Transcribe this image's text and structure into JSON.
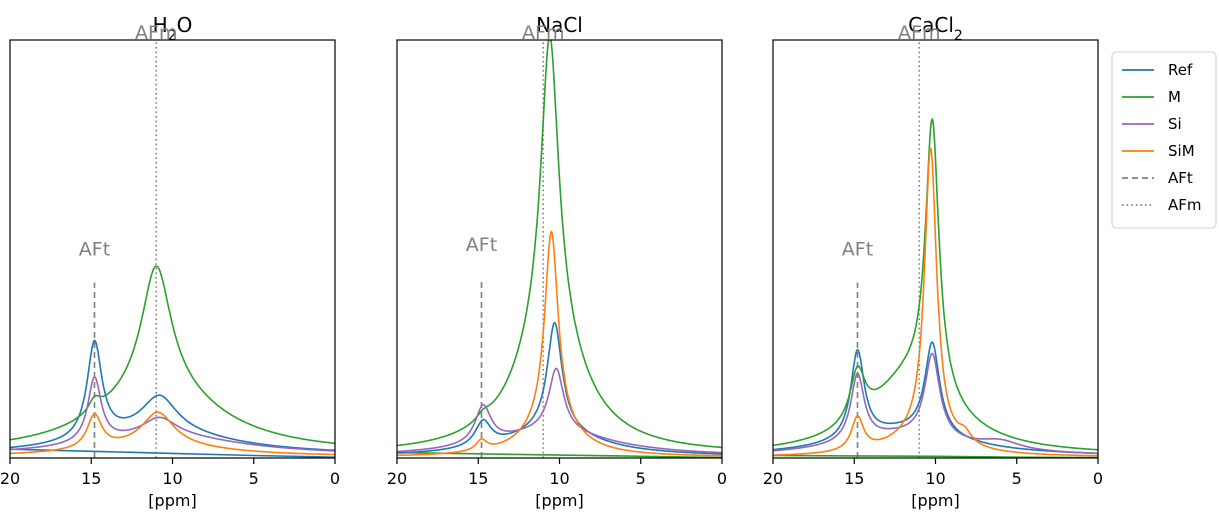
{
  "chart_data": {
    "type": "line",
    "xlabel": "[ppm]",
    "x_reversed": true,
    "xlim": [
      20,
      0
    ],
    "xticks": [
      20,
      15,
      10,
      5,
      0
    ],
    "ylim": [
      0,
      100
    ],
    "y_axis_visible": false,
    "grid": false,
    "legend": {
      "placement": "outside-top-right",
      "entries": [
        {
          "label": "Ref",
          "color": "#1f77b4",
          "style": "solid"
        },
        {
          "label": "M",
          "color": "#2ca02c",
          "style": "solid"
        },
        {
          "label": "Si",
          "color": "#9467bd",
          "style": "solid"
        },
        {
          "label": "SiM",
          "color": "#ff7f0e",
          "style": "solid"
        },
        {
          "label": "AFt",
          "color": "#808080",
          "style": "dashed"
        },
        {
          "label": "AFm",
          "color": "#808080",
          "style": "dotted"
        }
      ]
    },
    "reference_lines": [
      {
        "label": "AFt",
        "x": 14.8,
        "style": "dashed",
        "color": "#808080"
      },
      {
        "label": "AFm",
        "x": 11.0,
        "style": "dotted",
        "color": "#808080"
      }
    ],
    "panels": [
      {
        "title_main": "H",
        "title_sub": "2",
        "title_tail": "O",
        "aft_top": 42,
        "aft_label_y": 48,
        "afm_top": 100,
        "afm_label_y": 101,
        "baseline_series": {
          "name": "",
          "color": "#1f77b4",
          "x": [
            20,
            15,
            10,
            5,
            0
          ],
          "y": [
            2.1,
            1.6,
            1.1,
            0.6,
            0.2
          ]
        },
        "series": [
          {
            "name": "Ref",
            "color": "#1f77b4",
            "peaks": [
              [
                14.8,
                23,
                0.55
              ],
              [
                10.8,
                8.5,
                1.3
              ]
            ],
            "wide": [
              [
                11,
                5.5,
                5.5
              ]
            ],
            "baseline": 0.6
          },
          {
            "name": "M",
            "color": "#2ca02c",
            "peaks": [
              [
                14.8,
                3.0,
                0.45
              ],
              [
                11.0,
                30,
                1.1
              ]
            ],
            "wide": [
              [
                10.8,
                15,
                4.6
              ]
            ],
            "baseline": 0.9
          },
          {
            "name": "Si",
            "color": "#9467bd",
            "peaks": [
              [
                14.8,
                15.5,
                0.5
              ],
              [
                10.8,
                4.5,
                1.3
              ]
            ],
            "wide": [
              [
                10.5,
                4.5,
                6
              ]
            ],
            "baseline": 0.5
          },
          {
            "name": "SiM",
            "color": "#ff7f0e",
            "peaks": [
              [
                14.8,
                8,
                0.55
              ],
              [
                10.9,
                8,
                1.2
              ]
            ],
            "wide": [
              [
                11,
                2.5,
                5
              ]
            ],
            "baseline": 0.3
          }
        ]
      },
      {
        "title_main": "NaCl",
        "title_sub": "",
        "title_tail": "",
        "aft_top": 43,
        "aft_label_y": 49,
        "afm_top": 100,
        "afm_label_y": 101,
        "baseline_series": {
          "name": "",
          "color": "#2ca02c",
          "x": [
            20,
            15,
            10,
            5,
            0
          ],
          "y": [
            1.3,
            1.0,
            0.7,
            0.4,
            0.1
          ]
        },
        "series": [
          {
            "name": "Ref",
            "color": "#1f77b4",
            "peaks": [
              [
                14.7,
                6,
                0.6
              ],
              [
                10.3,
                26,
                0.55
              ]
            ],
            "wide": [
              [
                10.5,
                6,
                3.5
              ]
            ],
            "baseline": 0.3
          },
          {
            "name": "M",
            "color": "#2ca02c",
            "peaks": [
              [
                14.7,
                1.5,
                0.5
              ],
              [
                10.6,
                70,
                0.65
              ]
            ],
            "wide": [
              [
                10.6,
                30,
                2.4
              ]
            ],
            "baseline": 0.8
          },
          {
            "name": "Si",
            "color": "#9467bd",
            "peaks": [
              [
                14.7,
                9,
                0.6
              ],
              [
                10.2,
                15,
                0.55
              ]
            ],
            "wide": [
              [
                10.5,
                6,
                4.5
              ]
            ],
            "baseline": 0.3
          },
          {
            "name": "SiM",
            "color": "#ff7f0e",
            "peaks": [
              [
                14.8,
                2.5,
                0.4
              ],
              [
                10.5,
                47,
                0.5
              ]
            ],
            "wide": [
              [
                10.5,
                7,
                2.0
              ]
            ],
            "baseline": 0.2
          }
        ]
      },
      {
        "title_main": "CaCl",
        "title_sub": "2",
        "title_tail": "",
        "aft_top": 42,
        "aft_label_y": 48,
        "afm_top": 100,
        "afm_label_y": 101,
        "baseline_series": {
          "name": "",
          "color": "#2ca02c",
          "x": [
            20,
            15,
            10,
            5,
            0
          ],
          "y": [
            0.6,
            0.5,
            0.4,
            0.2,
            0.1
          ]
        },
        "series": [
          {
            "name": "Ref",
            "color": "#1f77b4",
            "peaks": [
              [
                14.8,
                21,
                0.5
              ],
              [
                10.2,
                22,
                0.55
              ]
            ],
            "wide": [
              [
                12,
                6,
                4.5
              ]
            ],
            "baseline": 0.3
          },
          {
            "name": "M",
            "color": "#2ca02c",
            "peaks": [
              [
                14.8,
                12,
                0.55
              ],
              [
                10.2,
                65,
                0.5
              ]
            ],
            "wide": [
              [
                11.5,
                18,
                3.2
              ]
            ],
            "baseline": 0.5
          },
          {
            "name": "Si",
            "color": "#9467bd",
            "peaks": [
              [
                14.8,
                16,
                0.5
              ],
              [
                10.2,
                20,
                0.55
              ],
              [
                6.0,
                2.0,
                1.5
              ]
            ],
            "wide": [
              [
                12,
                5,
                4.5
              ]
            ],
            "baseline": 0.3
          },
          {
            "name": "SiM",
            "color": "#ff7f0e",
            "peaks": [
              [
                14.8,
                8,
                0.45
              ],
              [
                10.3,
                70,
                0.45
              ],
              [
                8.2,
                2.5,
                0.5
              ]
            ],
            "wide": [
              [
                11,
                4,
                2.5
              ]
            ],
            "baseline": 0.2
          }
        ]
      }
    ]
  }
}
